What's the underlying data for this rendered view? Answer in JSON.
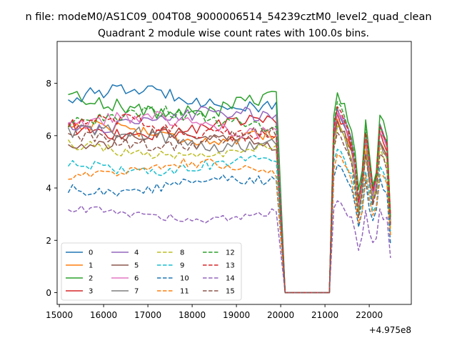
{
  "chart_data": {
    "type": "line",
    "suptitle": "n file: modeM0/AS1C09_004T08_9000006514_54239cztM0_level2_quad_clean",
    "title": "Quadrant 2 module wise count rates with 100.0s bins.",
    "xlabel": "",
    "ylabel": "",
    "x_offset_label": "+4.975e8",
    "xlim": [
      14950,
      22950
    ],
    "ylim": [
      -0.45,
      9.6
    ],
    "x_ticks": [
      15000,
      16000,
      17000,
      18000,
      19000,
      20000,
      21000,
      22000
    ],
    "x_tick_labels": [
      "15000",
      "16000",
      "17000",
      "18000",
      "19000",
      "20000",
      "21000",
      "22000"
    ],
    "y_ticks": [
      0,
      2,
      4,
      6,
      8
    ],
    "y_tick_labels": [
      "0",
      "2",
      "4",
      "6",
      "8"
    ],
    "grid": false,
    "legend_position": "lower-left",
    "x_start": 15200,
    "x_step": 100,
    "gap": {
      "drop_start": 19900,
      "zero_from": 20100,
      "zero_to": 21100,
      "rise_end": 21200
    },
    "series": [
      {
        "name": "0",
        "color": "#1f77b4",
        "dash": "solid",
        "base": 7.4,
        "amp": 0.35,
        "noise": 0.25,
        "post": 7.0
      },
      {
        "name": "1",
        "color": "#ff7f0e",
        "dash": "solid",
        "base": 6.1,
        "amp": 0.3,
        "noise": 0.25,
        "post": 6.6
      },
      {
        "name": "2",
        "color": "#2ca02c",
        "dash": "solid",
        "base": 7.2,
        "amp": 0.35,
        "noise": 0.3,
        "post": 7.6
      },
      {
        "name": "3",
        "color": "#d62728",
        "dash": "solid",
        "base": 6.3,
        "amp": 0.3,
        "noise": 0.25,
        "post": 6.8
      },
      {
        "name": "4",
        "color": "#9467bd",
        "dash": "solid",
        "base": 6.6,
        "amp": 0.3,
        "noise": 0.25,
        "post": 7.0
      },
      {
        "name": "5",
        "color": "#8c564b",
        "dash": "solid",
        "base": 5.8,
        "amp": 0.3,
        "noise": 0.25,
        "post": 6.5
      },
      {
        "name": "6",
        "color": "#e377c2",
        "dash": "solid",
        "base": 6.4,
        "amp": 0.3,
        "noise": 0.25,
        "post": 6.8
      },
      {
        "name": "7",
        "color": "#7f7f7f",
        "dash": "solid",
        "base": 5.9,
        "amp": 0.3,
        "noise": 0.25,
        "post": 6.3
      },
      {
        "name": "8",
        "color": "#bcbd22",
        "dash": "dashed",
        "base": 5.4,
        "amp": 0.25,
        "noise": 0.2,
        "post": 6.3
      },
      {
        "name": "9",
        "color": "#17becf",
        "dash": "dashed",
        "base": 4.9,
        "amp": 0.25,
        "noise": 0.2,
        "post": 5.4
      },
      {
        "name": "10",
        "color": "#1f77b4",
        "dash": "dashed",
        "base": 4.1,
        "amp": 0.25,
        "noise": 0.2,
        "post": 4.8
      },
      {
        "name": "11",
        "color": "#ff7f0e",
        "dash": "dashed",
        "base": 4.7,
        "amp": 0.25,
        "noise": 0.2,
        "post": 5.2
      },
      {
        "name": "12",
        "color": "#2ca02c",
        "dash": "dashed",
        "base": 6.6,
        "amp": 0.3,
        "noise": 0.25,
        "post": 7.2
      },
      {
        "name": "13",
        "color": "#d62728",
        "dash": "dashed",
        "base": 6.3,
        "amp": 0.3,
        "noise": 0.25,
        "post": 7.0
      },
      {
        "name": "14",
        "color": "#9467bd",
        "dash": "dashed",
        "base": 3.0,
        "amp": 0.2,
        "noise": 0.15,
        "post": 3.4
      },
      {
        "name": "15",
        "color": "#8c564b",
        "dash": "dashed",
        "base": 5.9,
        "amp": 0.3,
        "noise": 0.25,
        "post": 6.0
      }
    ]
  }
}
